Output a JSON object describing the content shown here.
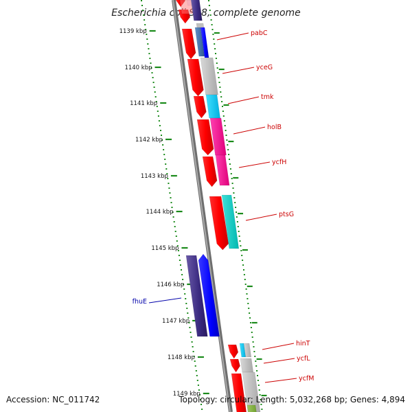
{
  "title": "Escherichia coli S88, complete genome",
  "footer": {
    "accession": "Accession: NC_011742",
    "topology": "Topology: circular; Length: 5,032,268 bp; Genes: 4,894"
  },
  "ticks": [
    "1139 kbp",
    "1140 kbp",
    "1141 kbp",
    "1142 kbp",
    "1143 kbp",
    "1144 kbp",
    "1145 kbp",
    "1146 kbp",
    "1147 kbp",
    "1148 kbp",
    "1149 kbp"
  ],
  "genes_forward": [
    "pabC",
    "yceG",
    "tmk",
    "holB",
    "ycfH",
    "ptsG",
    "hinT",
    "ycfL",
    "ycfM"
  ],
  "genes_reverse": [
    "fhuE"
  ],
  "colors": {
    "cds": "#ff0000",
    "reverse_cds": "#0000ff",
    "backbone": "#888888",
    "tick": "#008000"
  }
}
